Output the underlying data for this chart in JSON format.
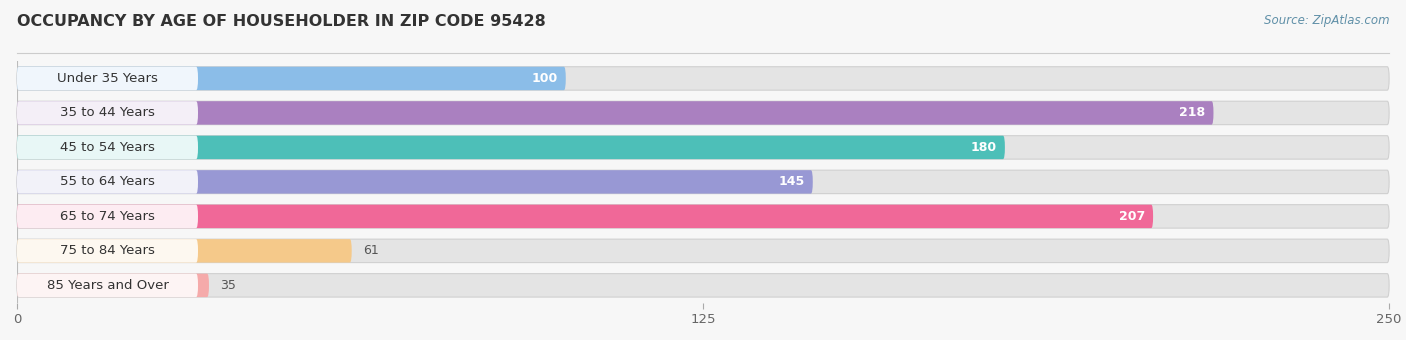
{
  "title": "OCCUPANCY BY AGE OF HOUSEHOLDER IN ZIP CODE 95428",
  "source": "Source: ZipAtlas.com",
  "categories": [
    "Under 35 Years",
    "35 to 44 Years",
    "45 to 54 Years",
    "55 to 64 Years",
    "65 to 74 Years",
    "75 to 84 Years",
    "85 Years and Over"
  ],
  "values": [
    100,
    218,
    180,
    145,
    207,
    61,
    35
  ],
  "bar_colors": [
    "#8BBDE8",
    "#AA80C0",
    "#4DBFB8",
    "#9898D4",
    "#F06898",
    "#F5C98A",
    "#F5AAAA"
  ],
  "background_color": "#f7f7f7",
  "bar_bg_color": "#e4e4e4",
  "xlim": [
    0,
    250
  ],
  "xticks": [
    0,
    125,
    250
  ],
  "title_fontsize": 11.5,
  "label_fontsize": 9.5,
  "value_fontsize": 9,
  "bar_height": 0.68,
  "bar_gap": 0.32
}
